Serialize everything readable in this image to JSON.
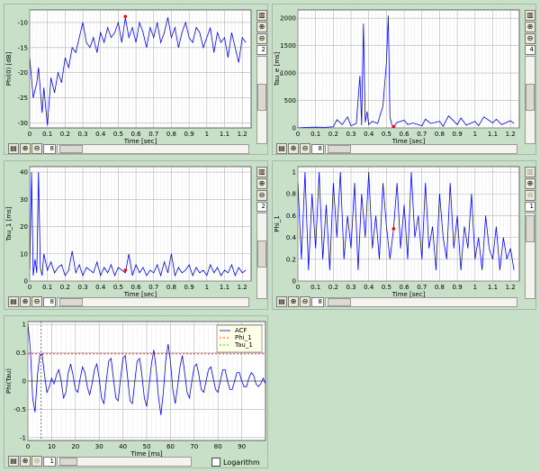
{
  "colors": {
    "series": "#0000ff",
    "marker": "#ff0000",
    "phi_line": "#ff0000",
    "tau_line": "#00aa00",
    "grid": "#b0b0b0"
  },
  "icons": [
    "layout-icon",
    "zoom-in-icon",
    "zoom-out-icon"
  ],
  "charts": [
    {
      "title": "",
      "xlabel": "Time [sec]",
      "ylabel": "Phi(0) [dB]",
      "spinner": "2",
      "hspinner": "8",
      "chart_data": {
        "type": "line",
        "xlim": [
          0,
          1.25
        ],
        "ylim": [
          -31,
          -7.5
        ],
        "grid": true,
        "x_ticks": [
          "0",
          "0.1",
          "0.2",
          "0.3",
          "0.4",
          "0.5",
          "0.6",
          "0.7",
          "0.8",
          "0.9",
          "1",
          "1.1",
          "1.2"
        ],
        "y_ticks": [
          "-10",
          "-15",
          "-20",
          "-25",
          "-30"
        ],
        "x_tick_values": [
          0,
          0.1,
          0.2,
          0.3,
          0.4,
          0.5,
          0.6,
          0.7,
          0.8,
          0.9,
          1,
          1.1,
          1.2
        ],
        "y_tick_values": [
          -10,
          -15,
          -20,
          -25,
          -30
        ],
        "series": [
          {
            "x": [
              0,
              0.02,
              0.04,
              0.05,
              0.07,
              0.08,
              0.1,
              0.12,
              0.14,
              0.16,
              0.18,
              0.2,
              0.22,
              0.24,
              0.26,
              0.28,
              0.3,
              0.32,
              0.34,
              0.36,
              0.38,
              0.4,
              0.42,
              0.44,
              0.46,
              0.48,
              0.5,
              0.52,
              0.54,
              0.56,
              0.58,
              0.6,
              0.62,
              0.64,
              0.66,
              0.68,
              0.7,
              0.72,
              0.74,
              0.76,
              0.78,
              0.8,
              0.82,
              0.84,
              0.86,
              0.88,
              0.9,
              0.92,
              0.94,
              0.96,
              0.98,
              1.0,
              1.02,
              1.04,
              1.06,
              1.08,
              1.1,
              1.12,
              1.14,
              1.16,
              1.18,
              1.2,
              1.22
            ],
            "values": [
              -17,
              -25,
              -22,
              -19,
              -28,
              -23,
              -30.5,
              -21,
              -24,
              -20,
              -22,
              -17,
              -19,
              -15,
              -16,
              -13,
              -10,
              -14,
              -15,
              -13,
              -16,
              -12,
              -14,
              -11,
              -13,
              -12,
              -10,
              -14,
              -9,
              -13,
              -11,
              -14,
              -10,
              -12,
              -15,
              -11,
              -13,
              -10,
              -14,
              -12,
              -9,
              -13,
              -11,
              -15,
              -12,
              -10,
              -13,
              -14,
              -11,
              -12,
              -15,
              -13,
              -11,
              -16,
              -12,
              -14,
              -13,
              -17,
              -12,
              -15,
              -18,
              -13,
              -14
            ]
          }
        ],
        "marker": {
          "x": 0.54,
          "y": -8.8
        }
      }
    },
    {
      "title": "",
      "xlabel": "Time [sec]",
      "ylabel": "Tau_e [ms]",
      "spinner": "4",
      "hspinner": "8",
      "chart_data": {
        "type": "line",
        "xlim": [
          0,
          1.25
        ],
        "ylim": [
          0,
          2150
        ],
        "grid": true,
        "x_ticks": [
          "0",
          "0.1",
          "0.2",
          "0.3",
          "0.4",
          "0.5",
          "0.6",
          "0.7",
          "0.8",
          "0.9",
          "1",
          "1.1",
          "1.2"
        ],
        "y_ticks": [
          "0",
          "500",
          "1000",
          "1500",
          "2000"
        ],
        "x_tick_values": [
          0,
          0.1,
          0.2,
          0.3,
          0.4,
          0.5,
          0.6,
          0.7,
          0.8,
          0.9,
          1,
          1.1,
          1.2
        ],
        "y_tick_values": [
          0,
          500,
          1000,
          1500,
          2000
        ],
        "series": [
          {
            "x": [
              0,
              0.05,
              0.1,
              0.15,
              0.2,
              0.22,
              0.25,
              0.28,
              0.3,
              0.33,
              0.35,
              0.36,
              0.37,
              0.38,
              0.39,
              0.4,
              0.42,
              0.45,
              0.48,
              0.5,
              0.51,
              0.52,
              0.53,
              0.54,
              0.56,
              0.6,
              0.62,
              0.65,
              0.7,
              0.72,
              0.75,
              0.8,
              0.82,
              0.85,
              0.9,
              0.92,
              0.95,
              1.0,
              1.02,
              1.05,
              1.1,
              1.12,
              1.15,
              1.2,
              1.22
            ],
            "values": [
              0,
              10,
              15,
              10,
              20,
              150,
              60,
              200,
              40,
              80,
              950,
              50,
              1900,
              100,
              300,
              60,
              120,
              80,
              400,
              1200,
              2050,
              200,
              60,
              20,
              100,
              140,
              60,
              90,
              40,
              160,
              80,
              120,
              30,
              220,
              60,
              180,
              50,
              120,
              40,
              200,
              90,
              160,
              60,
              130,
              80
            ]
          }
        ],
        "marker": {
          "x": 0.54,
          "y": 20
        }
      }
    },
    {
      "title": "",
      "xlabel": "Time [sec]",
      "ylabel": "Tau_1 [ms]",
      "spinner": "2",
      "hspinner": "8",
      "chart_data": {
        "type": "line",
        "xlim": [
          0,
          1.25
        ],
        "ylim": [
          0,
          42
        ],
        "grid": true,
        "x_ticks": [
          "0",
          "0.1",
          "0.2",
          "0.3",
          "0.4",
          "0.5",
          "0.6",
          "0.7",
          "0.8",
          "0.9",
          "1",
          "1.1",
          "1.2"
        ],
        "y_ticks": [
          "0",
          "10",
          "20",
          "30",
          "40"
        ],
        "x_tick_values": [
          0,
          0.1,
          0.2,
          0.3,
          0.4,
          0.5,
          0.6,
          0.7,
          0.8,
          0.9,
          1,
          1.1,
          1.2
        ],
        "y_tick_values": [
          0,
          10,
          20,
          30,
          40
        ],
        "series": [
          {
            "x": [
              0,
              0.01,
              0.02,
              0.03,
              0.04,
              0.05,
              0.06,
              0.07,
              0.08,
              0.1,
              0.12,
              0.14,
              0.16,
              0.18,
              0.2,
              0.22,
              0.24,
              0.26,
              0.28,
              0.3,
              0.32,
              0.34,
              0.36,
              0.38,
              0.4,
              0.42,
              0.44,
              0.46,
              0.48,
              0.5,
              0.52,
              0.54,
              0.56,
              0.58,
              0.6,
              0.62,
              0.64,
              0.66,
              0.68,
              0.7,
              0.72,
              0.74,
              0.76,
              0.78,
              0.8,
              0.82,
              0.84,
              0.86,
              0.88,
              0.9,
              0.92,
              0.94,
              0.96,
              0.98,
              1.0,
              1.02,
              1.04,
              1.06,
              1.08,
              1.1,
              1.12,
              1.14,
              1.16,
              1.18,
              1.2,
              1.22
            ],
            "values": [
              4,
              40,
              2,
              8,
              3,
              40,
              5,
              2,
              10,
              4,
              7,
              3,
              5,
              6,
              2,
              4,
              11,
              3,
              6,
              2,
              5,
              4,
              3,
              7,
              2,
              5,
              3,
              6,
              2,
              5,
              4,
              3,
              10,
              2,
              6,
              3,
              5,
              2,
              4,
              3,
              6,
              2,
              7,
              3,
              10,
              2,
              5,
              3,
              4,
              6,
              2,
              5,
              3,
              4,
              2,
              6,
              3,
              5,
              2,
              4,
              3,
              6,
              2,
              5,
              3,
              4
            ]
          }
        ],
        "marker": {
          "x": 0.54,
          "y": 4
        }
      }
    },
    {
      "title": "",
      "xlabel": "Time [sec]",
      "ylabel": "Phi_1",
      "spinner": "1",
      "hspinner": "8",
      "chart_data": {
        "type": "line",
        "xlim": [
          0,
          1.25
        ],
        "ylim": [
          0,
          1.05
        ],
        "grid": true,
        "x_ticks": [
          "0",
          "0.1",
          "0.2",
          "0.3",
          "0.4",
          "0.5",
          "0.6",
          "0.7",
          "0.8",
          "0.9",
          "1",
          "1.1",
          "1.2"
        ],
        "y_ticks": [
          "0",
          "0.2",
          "0.4",
          "0.6",
          "0.8",
          "1"
        ],
        "x_tick_values": [
          0,
          0.1,
          0.2,
          0.3,
          0.4,
          0.5,
          0.6,
          0.7,
          0.8,
          0.9,
          1,
          1.1,
          1.2
        ],
        "y_tick_values": [
          0,
          0.2,
          0.4,
          0.6,
          0.8,
          1
        ],
        "series": [
          {
            "x": [
              0,
              0.02,
              0.04,
              0.06,
              0.08,
              0.1,
              0.12,
              0.14,
              0.16,
              0.18,
              0.2,
              0.22,
              0.24,
              0.26,
              0.28,
              0.3,
              0.32,
              0.34,
              0.36,
              0.38,
              0.4,
              0.42,
              0.44,
              0.46,
              0.48,
              0.5,
              0.52,
              0.54,
              0.56,
              0.58,
              0.6,
              0.62,
              0.64,
              0.66,
              0.68,
              0.7,
              0.72,
              0.74,
              0.76,
              0.78,
              0.8,
              0.82,
              0.84,
              0.86,
              0.88,
              0.9,
              0.92,
              0.94,
              0.96,
              0.98,
              1.0,
              1.02,
              1.04,
              1.06,
              1.08,
              1.1,
              1.12,
              1.14,
              1.16,
              1.18,
              1.2,
              1.22
            ],
            "values": [
              0.9,
              0.2,
              1.0,
              0.1,
              0.8,
              0.3,
              1.0,
              0.2,
              0.7,
              0.1,
              0.9,
              0.4,
              1.0,
              0.2,
              0.6,
              0.3,
              0.9,
              0.1,
              0.8,
              0.4,
              1.0,
              0.3,
              0.6,
              0.2,
              0.9,
              0.5,
              0.2,
              0.48,
              0.9,
              0.3,
              0.7,
              0.2,
              1.0,
              0.4,
              0.6,
              0.2,
              0.9,
              0.3,
              0.5,
              0.1,
              0.8,
              0.4,
              0.2,
              0.9,
              0.3,
              0.6,
              0.1,
              0.5,
              0.3,
              0.8,
              0.2,
              0.4,
              0.1,
              0.6,
              0.3,
              0.2,
              0.5,
              0.1,
              0.4,
              0.2,
              0.3,
              0.1
            ]
          }
        ],
        "marker": {
          "x": 0.54,
          "y": 0.48
        }
      }
    },
    {
      "title": "",
      "xlabel": "Time [ms]",
      "ylabel": "Phi(Tau)",
      "spinner": "1",
      "checkbox_label": "Logarithm",
      "chart_data": {
        "type": "line",
        "xlim": [
          0,
          100
        ],
        "ylim": [
          -1.05,
          1.05
        ],
        "grid": true,
        "x_ticks": [
          "0",
          "10",
          "20",
          "30",
          "40",
          "50",
          "60",
          "70",
          "80",
          "90"
        ],
        "y_ticks": [
          "1",
          "0.5",
          "0",
          "-0.5",
          "-1"
        ],
        "x_tick_values": [
          0,
          10,
          20,
          30,
          40,
          50,
          60,
          70,
          80,
          90
        ],
        "y_tick_values": [
          1,
          0.5,
          0,
          -0.5,
          -1
        ],
        "legend": {
          "position": "top-right",
          "entries": [
            "ACF",
            "Phi_1",
            "Tau_1"
          ]
        },
        "phi_1": 0.48,
        "tau_1": 5.5,
        "series": [
          {
            "name": "ACF",
            "x": [
              0,
              1,
              2,
              3,
              4,
              5,
              6,
              7,
              8,
              9,
              10,
              11,
              12,
              13,
              14,
              15,
              16,
              17,
              18,
              19,
              20,
              21,
              22,
              23,
              24,
              25,
              26,
              27,
              28,
              29,
              30,
              31,
              32,
              33,
              34,
              35,
              36,
              37,
              38,
              39,
              40,
              41,
              42,
              43,
              44,
              45,
              46,
              47,
              48,
              49,
              50,
              51,
              52,
              53,
              54,
              55,
              56,
              57,
              58,
              59,
              60,
              61,
              62,
              63,
              64,
              65,
              66,
              67,
              68,
              69,
              70,
              71,
              72,
              73,
              74,
              75,
              76,
              77,
              78,
              79,
              80,
              81,
              82,
              83,
              84,
              85,
              86,
              87,
              88,
              89,
              90,
              91,
              92,
              93,
              94,
              95,
              96,
              97,
              98,
              99,
              100
            ],
            "values": [
              1.0,
              0.6,
              -0.3,
              -0.55,
              0.1,
              0.45,
              0.48,
              0.1,
              -0.2,
              -0.1,
              0.05,
              -0.05,
              0.1,
              0.2,
              0.0,
              -0.3,
              -0.2,
              0.15,
              0.3,
              0.1,
              -0.15,
              -0.2,
              0.05,
              0.25,
              0.15,
              -0.1,
              -0.25,
              -0.05,
              0.2,
              0.3,
              0.05,
              -0.3,
              -0.4,
              0.0,
              0.35,
              0.4,
              0.05,
              -0.3,
              -0.35,
              0.05,
              0.4,
              0.45,
              0.05,
              -0.35,
              -0.4,
              0.0,
              0.35,
              0.4,
              0.1,
              -0.3,
              -0.45,
              -0.1,
              0.3,
              0.55,
              0.2,
              -0.3,
              -0.6,
              -0.2,
              0.35,
              0.65,
              0.35,
              -0.15,
              -0.4,
              -0.1,
              0.25,
              0.45,
              0.15,
              -0.2,
              -0.3,
              0.0,
              0.25,
              0.3,
              0.1,
              -0.15,
              -0.2,
              0.0,
              0.2,
              0.25,
              0.05,
              -0.15,
              -0.2,
              0.0,
              0.2,
              0.2,
              0.0,
              -0.15,
              -0.15,
              0.0,
              0.15,
              0.15,
              0.0,
              -0.1,
              -0.1,
              0.05,
              0.15,
              0.1,
              -0.05,
              -0.1,
              -0.05,
              0.05,
              -0.05
            ]
          }
        ]
      }
    }
  ]
}
